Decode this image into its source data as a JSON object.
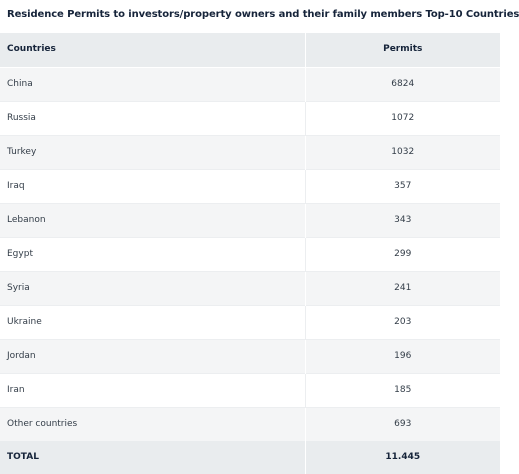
{
  "title": "Residence Permits to investors/property owners and their family members Top-10 Countries",
  "chart_data": {
    "type": "table",
    "title": "Residence Permits to investors/property owners and their family members Top-10 Countries",
    "columns": [
      "Countries",
      "Permits"
    ],
    "rows": [
      {
        "country": "China",
        "permits": "6824"
      },
      {
        "country": "Russia",
        "permits": "1072"
      },
      {
        "country": "Turkey",
        "permits": "1032"
      },
      {
        "country": "Iraq",
        "permits": "357"
      },
      {
        "country": "Lebanon",
        "permits": "343"
      },
      {
        "country": "Egypt",
        "permits": "299"
      },
      {
        "country": "Syria",
        "permits": "241"
      },
      {
        "country": "Ukraine",
        "permits": "203"
      },
      {
        "country": "Jordan",
        "permits": "196"
      },
      {
        "country": "Iran",
        "permits": "185"
      },
      {
        "country": "Other countries",
        "permits": "693"
      }
    ],
    "total": {
      "label": "TOTAL",
      "permits": "11.445"
    }
  }
}
